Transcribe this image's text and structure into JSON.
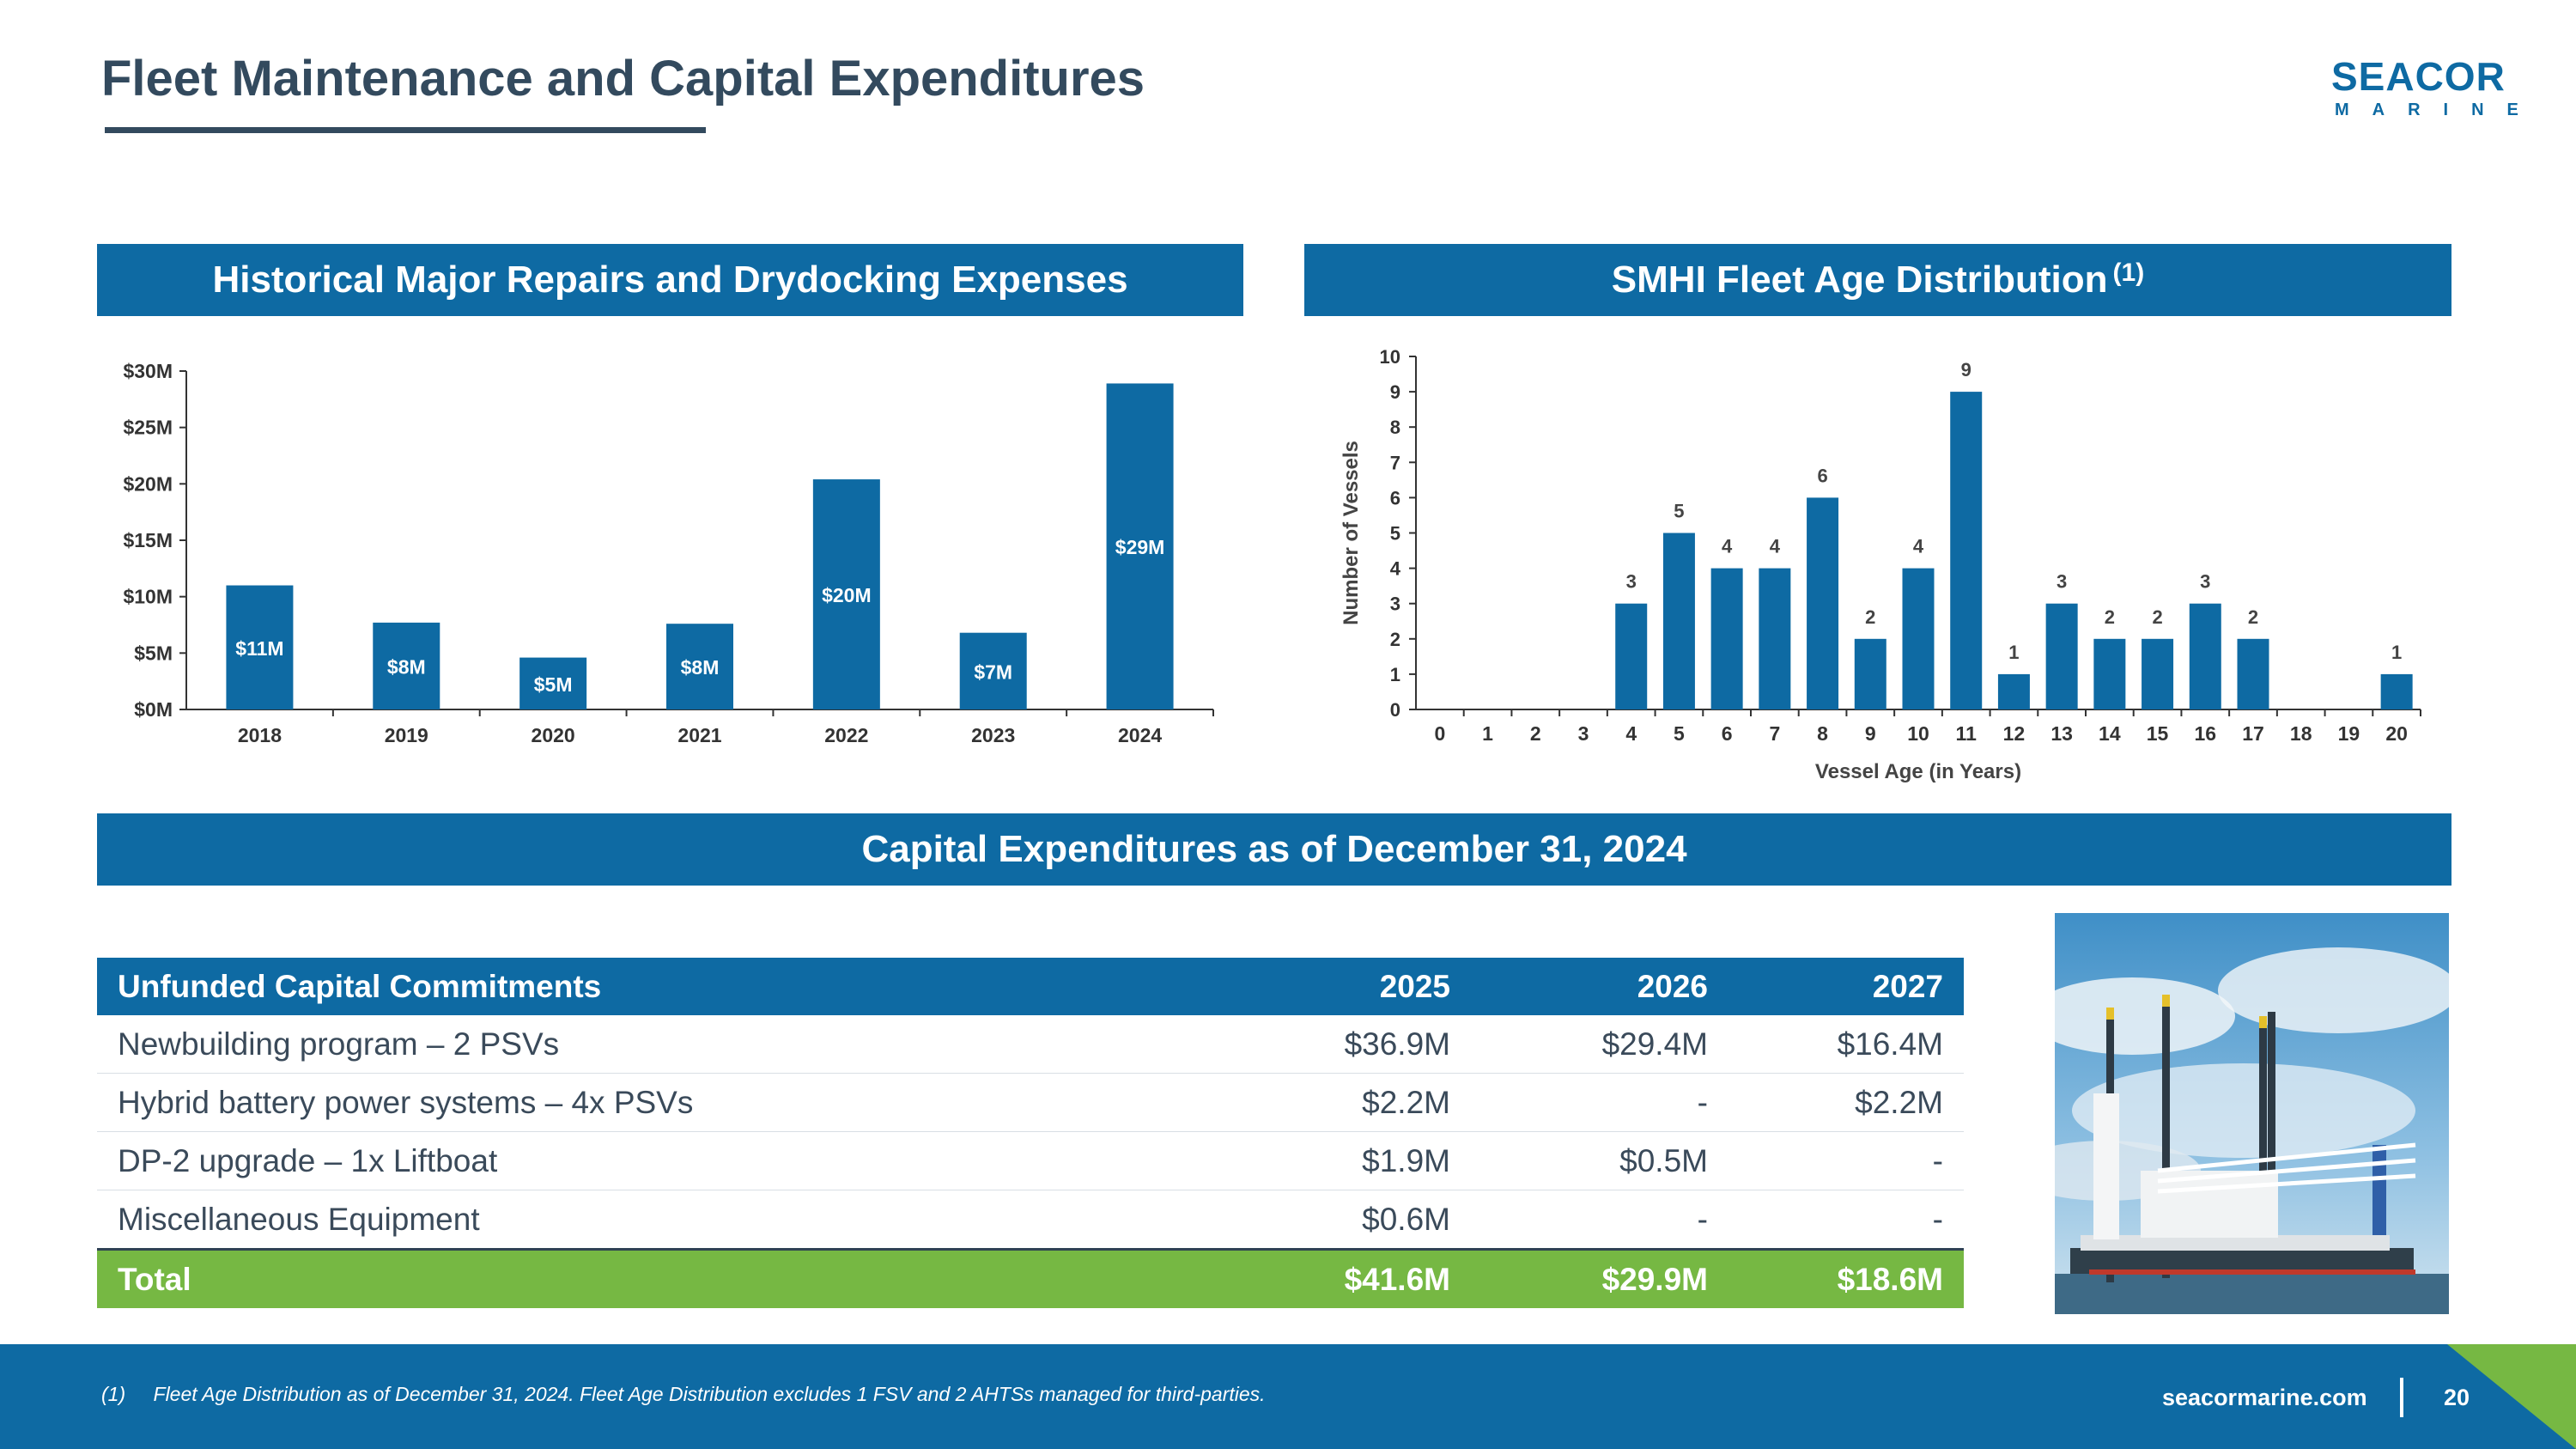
{
  "header": {
    "title": "Fleet Maintenance and Capital Expenditures"
  },
  "logo": {
    "top": "SEACOR",
    "bottom": "MARINE"
  },
  "repairs": {
    "banner": "Historical Major Repairs and Drydocking Expenses"
  },
  "fleet_age": {
    "banner": "SMHI Fleet Age Distribution",
    "banner_note": "(1)"
  },
  "capex": {
    "banner": "Capital Expenditures as of December 31, 2024",
    "columns": [
      "Unfunded Capital Commitments",
      "2025",
      "2026",
      "2027"
    ],
    "rows": [
      [
        "Newbuilding program – 2 PSVs",
        "$36.9M",
        "$29.4M",
        "$16.4M"
      ],
      [
        "Hybrid battery power systems – 4x PSVs",
        "$2.2M",
        "-",
        "$2.2M"
      ],
      [
        "DP-2 upgrade – 1x Liftboat",
        "$1.9M",
        "$0.5M",
        "-"
      ],
      [
        "Miscellaneous Equipment",
        "$0.6M",
        "-",
        "-"
      ]
    ],
    "total": [
      "Total",
      "$41.6M",
      "$29.9M",
      "$18.6M"
    ]
  },
  "chart_data": [
    {
      "type": "bar",
      "title": "Historical Major Repairs and Drydocking Expenses",
      "categories": [
        "2018",
        "2019",
        "2020",
        "2021",
        "2022",
        "2023",
        "2024"
      ],
      "values": [
        11,
        7.7,
        4.6,
        7.6,
        20.4,
        6.8,
        28.9
      ],
      "data_labels": [
        "$11M",
        "$8M",
        "$5M",
        "$8M",
        "$20M",
        "$7M",
        "$29M"
      ],
      "y_ticks": [
        "$0M",
        "$5M",
        "$10M",
        "$15M",
        "$20M",
        "$25M",
        "$30M"
      ],
      "ylim": [
        0,
        30
      ],
      "xlabel": "",
      "ylabel": "",
      "grid": false,
      "color": "#0e6aa3"
    },
    {
      "type": "bar",
      "title": "SMHI Fleet Age Distribution",
      "categories": [
        "0",
        "1",
        "2",
        "3",
        "4",
        "5",
        "6",
        "7",
        "8",
        "9",
        "10",
        "11",
        "12",
        "13",
        "14",
        "15",
        "16",
        "17",
        "18",
        "19",
        "20"
      ],
      "values": [
        0,
        0,
        0,
        0,
        3,
        5,
        4,
        4,
        6,
        2,
        4,
        9,
        1,
        3,
        2,
        2,
        3,
        2,
        0,
        0,
        1
      ],
      "xlabel": "Vessel Age (in Years)",
      "ylabel": "Number of Vessels",
      "ylim": [
        0,
        10
      ],
      "grid": false,
      "color": "#0e6aa3"
    }
  ],
  "footer": {
    "footnote_num": "(1)",
    "footnote": "Fleet Age Distribution as of December 31, 2024. Fleet Age Distribution excludes 1 FSV and 2 AHTSs managed for third-parties.",
    "site": "seacormarine.com",
    "page": "20"
  }
}
